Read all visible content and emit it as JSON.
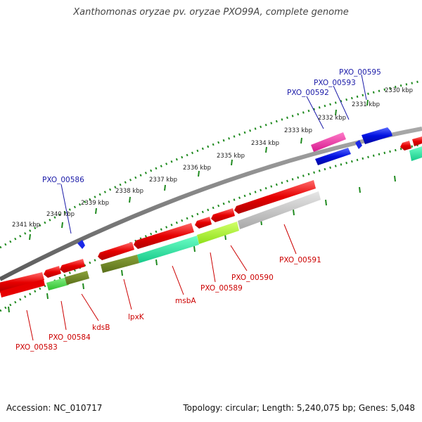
{
  "title": "Xanthomonas oryzae pv. oryzae PXO99A, complete genome",
  "footer": {
    "accession": "Accession: NC_010717",
    "summary": "Topology: circular; Length: 5,240,075 bp; Genes: 5,048"
  },
  "colors": {
    "backbone": "#7a7a7a",
    "ticks": "#1f8a1f",
    "forward_gene": "#0018e6",
    "reverse_gene": "#e60000",
    "magenta_gene": "#e01e9a",
    "label_forward": "#1a1aa8",
    "label_reverse": "#cc0000"
  },
  "kbp_labels": [
    "2330 kbp",
    "2331 kbp",
    "2332 kbp",
    "2333 kbp",
    "2334 kbp",
    "2335 kbp",
    "2336 kbp",
    "2337 kbp",
    "2338 kbp",
    "2339 kbp",
    "2340 kbp",
    "2341 kbp"
  ],
  "forward_labels": [
    "PXO_00595",
    "PXO_00593",
    "PXO_00592",
    "PXO_00586"
  ],
  "reverse_labels": [
    "PXO_00583",
    "PXO_00584",
    "kdsB",
    "lpxK",
    "msbA",
    "PXO_00589",
    "PXO_00590",
    "PXO_00591"
  ],
  "cog_color_hints": [
    "light-green",
    "olive",
    "spring-green",
    "yellow-green",
    "light-gray",
    "magenta"
  ]
}
